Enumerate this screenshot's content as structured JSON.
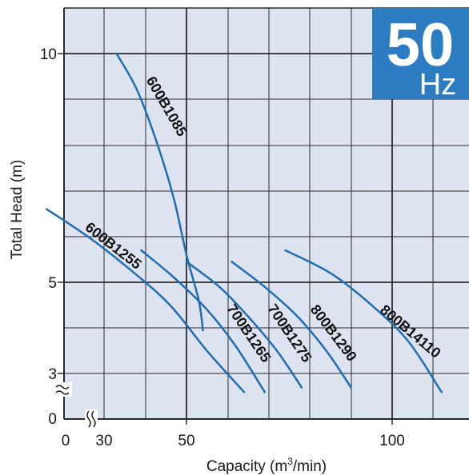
{
  "chart_data": {
    "type": "line",
    "xlabel_main": "Capacity (m",
    "xlabel_sup": "3",
    "xlabel_tail": "/min)",
    "ylabel": "Total Head (m)",
    "x_ticks": [
      "0",
      "30",
      "50",
      "100"
    ],
    "y_ticks": [
      "10",
      "5",
      "3",
      "0"
    ],
    "x_range": [
      30,
      120
    ],
    "y_range": [
      2.2,
      11
    ],
    "axis_break": "broken axis near origin",
    "grid": true,
    "series": [
      {
        "name": "600B1085",
        "x": [
          33,
          38,
          43,
          47,
          50,
          53,
          54
        ],
        "y": [
          10,
          9.2,
          8.0,
          6.8,
          5.6,
          4.6,
          3.95
        ]
      },
      {
        "name": "600B1255",
        "x": [
          16,
          26,
          36,
          46,
          55,
          64
        ],
        "y": [
          6.6,
          6.0,
          5.3,
          4.5,
          3.5,
          2.6
        ]
      },
      {
        "name": "700B1265",
        "x": [
          39,
          47,
          55,
          62,
          69
        ],
        "y": [
          5.7,
          5.1,
          4.4,
          3.6,
          2.6
        ]
      },
      {
        "name": "700B1275",
        "x": [
          50,
          58,
          65,
          72,
          78
        ],
        "y": [
          5.45,
          4.9,
          4.25,
          3.5,
          2.7
        ]
      },
      {
        "name": "800B1290",
        "x": [
          61,
          69,
          77,
          84,
          90
        ],
        "y": [
          5.45,
          4.9,
          4.25,
          3.5,
          2.7
        ]
      },
      {
        "name": "800B14110",
        "x": [
          74,
          85,
          95,
          104,
          112
        ],
        "y": [
          5.7,
          5.2,
          4.5,
          3.7,
          2.6
        ]
      }
    ]
  },
  "badge": {
    "value": "50",
    "unit": "Hz"
  },
  "colors": {
    "plot_bg": "#dde3f0",
    "grid": "#2a2a2a",
    "curve": "#1f6db2",
    "badge": "#2b7cc0"
  }
}
